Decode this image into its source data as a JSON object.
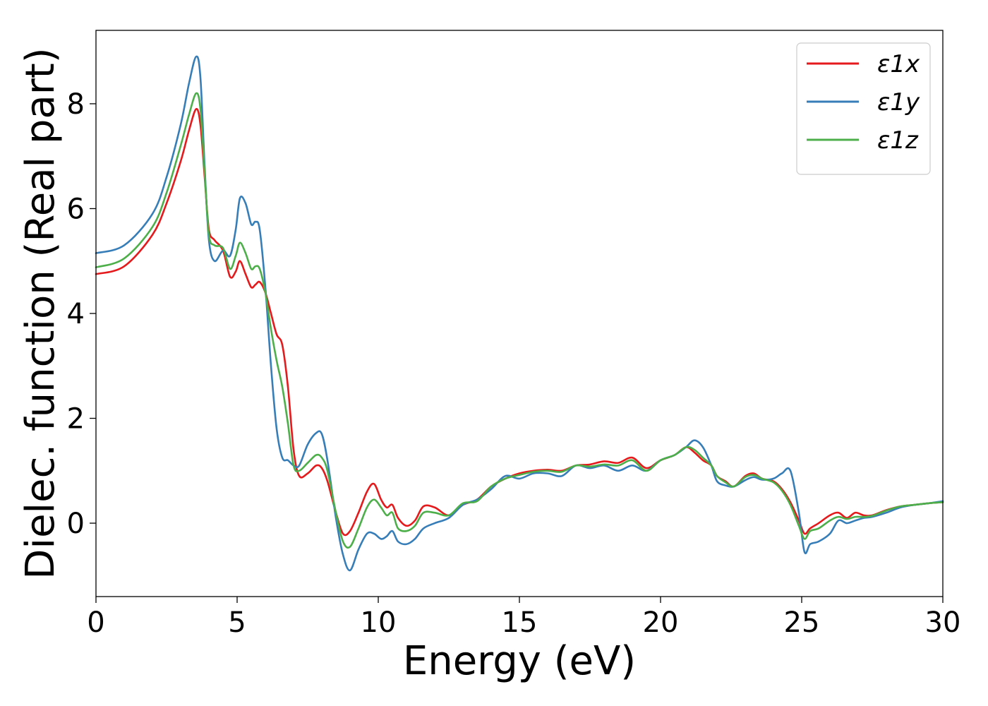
{
  "chart_data": {
    "type": "line",
    "title": "",
    "xlabel": "Energy (eV)",
    "ylabel": "Dielec. function (Real part)",
    "xlim": [
      0,
      30
    ],
    "ylim": [
      -1.4,
      9.4
    ],
    "xticks": [
      0,
      5,
      10,
      15,
      20,
      25,
      30
    ],
    "yticks": [
      0,
      2,
      4,
      6,
      8
    ],
    "grid": false,
    "legend_position": "top-right",
    "series": [
      {
        "name": "ε1x",
        "color": "#e41a1c",
        "x": [
          0,
          1,
          2,
          2.5,
          3.0,
          3.3,
          3.55,
          3.7,
          3.85,
          4.0,
          4.2,
          4.5,
          4.75,
          4.95,
          5.1,
          5.3,
          5.5,
          5.65,
          5.8,
          6.0,
          6.2,
          6.4,
          6.6,
          6.8,
          7.0,
          7.2,
          7.5,
          7.8,
          8.0,
          8.2,
          8.5,
          8.75,
          9.0,
          9.3,
          9.6,
          9.85,
          10.1,
          10.3,
          10.5,
          10.7,
          11.0,
          11.3,
          11.6,
          12.0,
          12.5,
          13.0,
          13.5,
          14.0,
          14.5,
          15.0,
          15.5,
          16.0,
          16.5,
          17.0,
          17.5,
          18.0,
          18.5,
          19.0,
          19.5,
          20.0,
          20.5,
          20.9,
          21.2,
          21.5,
          21.8,
          22.0,
          22.3,
          22.6,
          23.0,
          23.3,
          23.6,
          24.0,
          24.3,
          24.6,
          24.9,
          25.1,
          25.3,
          25.6,
          26.0,
          26.3,
          26.6,
          26.9,
          27.2,
          27.5,
          28.0,
          28.5,
          29.0,
          29.5,
          30.0
        ],
        "y": [
          4.75,
          4.9,
          5.5,
          6.1,
          6.9,
          7.5,
          7.9,
          7.6,
          6.6,
          5.6,
          5.4,
          5.2,
          4.7,
          4.8,
          5.0,
          4.75,
          4.5,
          4.55,
          4.6,
          4.4,
          4.0,
          3.6,
          3.4,
          2.6,
          1.4,
          0.9,
          0.95,
          1.1,
          1.05,
          0.8,
          0.2,
          -0.2,
          -0.15,
          0.2,
          0.6,
          0.75,
          0.45,
          0.3,
          0.35,
          0.1,
          -0.05,
          0.05,
          0.32,
          0.3,
          0.15,
          0.35,
          0.45,
          0.7,
          0.85,
          0.95,
          1.0,
          1.02,
          1.0,
          1.1,
          1.12,
          1.18,
          1.15,
          1.25,
          1.05,
          1.2,
          1.3,
          1.45,
          1.35,
          1.2,
          1.1,
          0.9,
          0.8,
          0.7,
          0.9,
          0.95,
          0.85,
          0.8,
          0.65,
          0.4,
          0.05,
          -0.2,
          -0.1,
          0.0,
          0.15,
          0.2,
          0.1,
          0.2,
          0.15,
          0.15,
          0.25,
          0.32,
          0.35,
          0.38,
          0.4
        ]
      },
      {
        "name": "ε1y",
        "color": "#377eb8",
        "x": [
          0,
          1,
          2,
          2.5,
          3.0,
          3.3,
          3.55,
          3.7,
          3.85,
          4.0,
          4.2,
          4.5,
          4.75,
          4.95,
          5.1,
          5.3,
          5.5,
          5.65,
          5.8,
          6.0,
          6.2,
          6.4,
          6.6,
          6.8,
          7.0,
          7.2,
          7.5,
          7.8,
          8.0,
          8.2,
          8.5,
          8.75,
          9.0,
          9.3,
          9.6,
          9.85,
          10.1,
          10.3,
          10.5,
          10.7,
          11.0,
          11.3,
          11.6,
          12.0,
          12.5,
          13.0,
          13.5,
          14.0,
          14.5,
          15.0,
          15.5,
          16.0,
          16.5,
          17.0,
          17.5,
          18.0,
          18.5,
          19.0,
          19.5,
          20.0,
          20.5,
          20.9,
          21.2,
          21.5,
          21.8,
          22.0,
          22.3,
          22.6,
          23.0,
          23.3,
          23.6,
          24.0,
          24.3,
          24.6,
          24.9,
          25.1,
          25.3,
          25.6,
          26.0,
          26.3,
          26.6,
          26.9,
          27.2,
          27.5,
          28.0,
          28.5,
          29.0,
          29.5,
          30.0
        ],
        "y": [
          5.15,
          5.3,
          5.9,
          6.6,
          7.6,
          8.4,
          8.9,
          8.5,
          6.8,
          5.4,
          5.0,
          5.2,
          5.1,
          5.6,
          6.2,
          6.1,
          5.7,
          5.75,
          5.6,
          4.5,
          3.0,
          1.8,
          1.25,
          1.2,
          1.1,
          1.1,
          1.5,
          1.72,
          1.7,
          1.2,
          0.1,
          -0.6,
          -0.9,
          -0.5,
          -0.2,
          -0.2,
          -0.3,
          -0.25,
          -0.15,
          -0.35,
          -0.4,
          -0.3,
          -0.1,
          0.0,
          0.1,
          0.35,
          0.45,
          0.65,
          0.9,
          0.85,
          0.95,
          0.95,
          0.9,
          1.1,
          1.05,
          1.1,
          1.0,
          1.1,
          1.0,
          1.2,
          1.3,
          1.45,
          1.58,
          1.45,
          1.1,
          0.8,
          0.72,
          0.7,
          0.82,
          0.88,
          0.83,
          0.85,
          0.95,
          1.0,
          0.2,
          -0.55,
          -0.4,
          -0.35,
          -0.2,
          0.05,
          0.0,
          0.05,
          0.1,
          0.12,
          0.2,
          0.3,
          0.35,
          0.38,
          0.42
        ]
      },
      {
        "name": "ε1z",
        "color": "#4daf4a",
        "x": [
          0,
          1,
          2,
          2.5,
          3.0,
          3.3,
          3.55,
          3.7,
          3.85,
          4.0,
          4.2,
          4.5,
          4.75,
          4.95,
          5.1,
          5.3,
          5.5,
          5.65,
          5.8,
          6.0,
          6.2,
          6.4,
          6.6,
          6.8,
          7.0,
          7.2,
          7.5,
          7.8,
          8.0,
          8.2,
          8.5,
          8.75,
          9.0,
          9.3,
          9.6,
          9.85,
          10.1,
          10.3,
          10.5,
          10.7,
          11.0,
          11.3,
          11.6,
          12.0,
          12.5,
          13.0,
          13.5,
          14.0,
          14.5,
          15.0,
          15.5,
          16.0,
          16.5,
          17.0,
          17.5,
          18.0,
          18.5,
          19.0,
          19.5,
          20.0,
          20.5,
          20.9,
          21.2,
          21.5,
          21.8,
          22.0,
          22.3,
          22.6,
          23.0,
          23.3,
          23.6,
          24.0,
          24.3,
          24.6,
          24.9,
          25.1,
          25.3,
          25.6,
          26.0,
          26.3,
          26.6,
          26.9,
          27.2,
          27.5,
          28.0,
          28.5,
          29.0,
          29.5,
          30.0
        ],
        "y": [
          4.88,
          5.05,
          5.65,
          6.3,
          7.2,
          7.8,
          8.2,
          7.9,
          6.7,
          5.5,
          5.3,
          5.25,
          4.85,
          5.1,
          5.35,
          5.15,
          4.85,
          4.9,
          4.85,
          4.4,
          3.7,
          3.1,
          2.6,
          1.9,
          1.1,
          1.0,
          1.15,
          1.3,
          1.25,
          1.0,
          0.2,
          -0.35,
          -0.45,
          -0.1,
          0.3,
          0.45,
          0.3,
          0.15,
          0.2,
          -0.1,
          -0.15,
          -0.05,
          0.2,
          0.2,
          0.15,
          0.38,
          0.42,
          0.7,
          0.85,
          0.92,
          0.98,
          1.0,
          0.98,
          1.1,
          1.08,
          1.12,
          1.1,
          1.2,
          1.0,
          1.2,
          1.3,
          1.45,
          1.4,
          1.25,
          1.1,
          0.9,
          0.78,
          0.7,
          0.88,
          0.92,
          0.85,
          0.78,
          0.62,
          0.35,
          -0.05,
          -0.3,
          -0.15,
          -0.1,
          0.05,
          0.12,
          0.08,
          0.12,
          0.12,
          0.14,
          0.24,
          0.32,
          0.35,
          0.38,
          0.4
        ]
      }
    ]
  }
}
